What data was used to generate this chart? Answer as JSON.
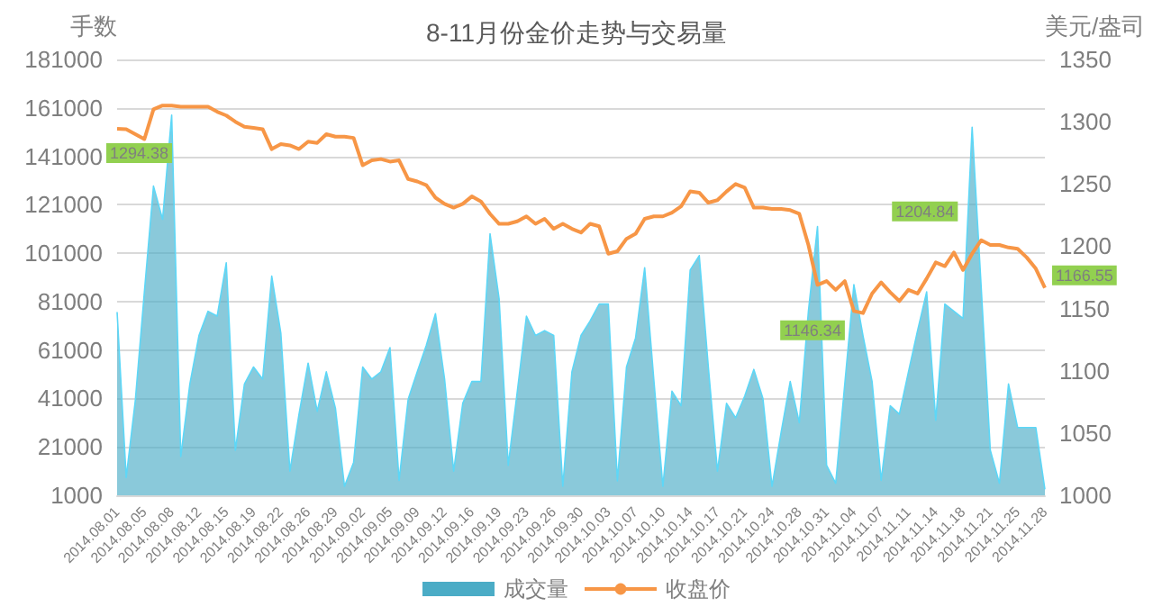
{
  "chart_data": {
    "type": "area",
    "title": "8-11月份金价走势与交易量",
    "ylabel": "手数",
    "y2label": "美元/盎司",
    "categories": [
      "2014.08.01",
      null,
      null,
      "2014.08.05",
      null,
      null,
      "2014.08.08",
      null,
      null,
      "2014.08.12",
      null,
      null,
      "2014.08.15",
      null,
      null,
      "2014.08.19",
      null,
      null,
      "2014.08.22",
      null,
      null,
      "2014.08.26",
      null,
      null,
      "2014.08.29",
      null,
      null,
      "2014.09.02",
      null,
      null,
      "2014.09.05",
      null,
      null,
      "2014.09.09",
      null,
      null,
      "2014.09.12",
      null,
      null,
      "2014.09.16",
      null,
      null,
      "2014.09.19",
      null,
      null,
      "2014.09.23",
      null,
      null,
      "2014.09.26",
      null,
      null,
      "2014.09.30",
      null,
      null,
      "2014.10.03",
      null,
      null,
      "2014.10.07",
      null,
      null,
      "2014.10.10",
      null,
      null,
      "2014.10.14",
      null,
      null,
      "2014.10.17",
      null,
      null,
      "2014.10.21",
      null,
      null,
      "2014.10.24",
      null,
      null,
      "2014.10.28",
      null,
      null,
      "2014.10.31",
      null,
      null,
      "2014.11.04",
      null,
      null,
      "2014.11.07",
      null,
      null,
      "2014.11.11",
      null,
      null,
      "2014.11.14",
      null,
      null,
      "2014.11.18",
      null,
      null,
      "2014.11.21",
      null,
      null,
      "2014.11.25",
      null,
      null,
      "2014.11.28"
    ],
    "series": [
      {
        "name": "成交量",
        "color": "#4bacc6",
        "values": [
          76700,
          8400,
          40000,
          85000,
          128700,
          115000,
          158000,
          17000,
          47000,
          67000,
          77000,
          75000,
          97000,
          19600,
          47000,
          54000,
          49000,
          91500,
          68000,
          11000,
          34500,
          55600,
          35700,
          52000,
          37000,
          4700,
          14600,
          54000,
          49000,
          52000,
          62000,
          7200,
          40700,
          52000,
          63000,
          76000,
          49000,
          11000,
          39000,
          48000,
          48000,
          109000,
          82000,
          13400,
          44000,
          75000,
          67000,
          69000,
          67000,
          4700,
          52000,
          67000,
          73000,
          80000,
          80000,
          7000,
          54000,
          66000,
          95000,
          49000,
          4700,
          44000,
          38000,
          94000,
          100000,
          54000,
          11000,
          39000,
          33000,
          42000,
          53000,
          41000,
          4700,
          27000,
          48000,
          31000,
          77000,
          112000,
          13400,
          6000,
          47000,
          88000,
          67000,
          48000,
          7200,
          38000,
          34500,
          52000,
          69000,
          85000,
          32000,
          80000,
          77000,
          74000,
          153000,
          86600,
          19600,
          6000,
          47000,
          29000,
          29000,
          29000,
          3500
        ]
      },
      {
        "name": "收盘价",
        "type": "line",
        "axis": "y2",
        "color": "#f79646",
        "values": [
          1294.38,
          1294,
          1290,
          1286,
          1310,
          1313,
          1313,
          1312,
          1312,
          1312,
          1312,
          1308,
          1305,
          1300,
          1296,
          1295,
          1294,
          1278,
          1282,
          1281,
          1278,
          1284,
          1283,
          1290,
          1288,
          1288,
          1287,
          1265,
          1269,
          1270,
          1268,
          1269,
          1254,
          1252,
          1249,
          1239,
          1234,
          1231,
          1234,
          1240,
          1236,
          1226,
          1218,
          1218,
          1220,
          1224,
          1218,
          1222,
          1214,
          1218,
          1214,
          1211,
          1218,
          1216,
          1194,
          1196,
          1206,
          1210,
          1222,
          1224,
          1224,
          1227,
          1232,
          1244,
          1243,
          1235,
          1237,
          1244,
          1250,
          1247,
          1231,
          1231,
          1230,
          1230,
          1229,
          1226,
          1201,
          1169,
          1172,
          1165,
          1172,
          1148,
          1146.34,
          1162,
          1171,
          1163,
          1156,
          1165,
          1162,
          1174,
          1187,
          1184,
          1195,
          1181,
          1194,
          1204.84,
          1201,
          1201,
          1199,
          1198,
          1191,
          1182,
          1166.55
        ],
        "value_labels": [
          "1294.38",
          null,
          null,
          null,
          null,
          null,
          null,
          null,
          null,
          null,
          null,
          null,
          null,
          null,
          null,
          null,
          null,
          null,
          null,
          null,
          null,
          null,
          null,
          null,
          null,
          null,
          null,
          null,
          null,
          null,
          null,
          null,
          null,
          null,
          null,
          null,
          null,
          null,
          null,
          null,
          null,
          null,
          null,
          null,
          null,
          null,
          null,
          null,
          null,
          null,
          null,
          null,
          null,
          null,
          null,
          null,
          null,
          null,
          null,
          null,
          null,
          null,
          null,
          null,
          null,
          null,
          null,
          null,
          null,
          null,
          null,
          null,
          null,
          null,
          null,
          null,
          null,
          null,
          null,
          null,
          null,
          null,
          "1146.34",
          null,
          null,
          null,
          null,
          null,
          null,
          null,
          null,
          null,
          null,
          null,
          null,
          "1204.84",
          null,
          null,
          null,
          null,
          null,
          null,
          "1166.55"
        ]
      }
    ],
    "ylim": [
      1000,
      181000
    ],
    "yticks": [
      1000,
      21000,
      41000,
      61000,
      81000,
      101000,
      121000,
      141000,
      161000,
      181000
    ],
    "y2lim": [
      1000,
      1350
    ],
    "y2ticks": [
      1000,
      1050,
      1100,
      1150,
      1200,
      1250,
      1300,
      1350
    ],
    "grid": "y",
    "legend": "bottom",
    "marker": "none"
  }
}
